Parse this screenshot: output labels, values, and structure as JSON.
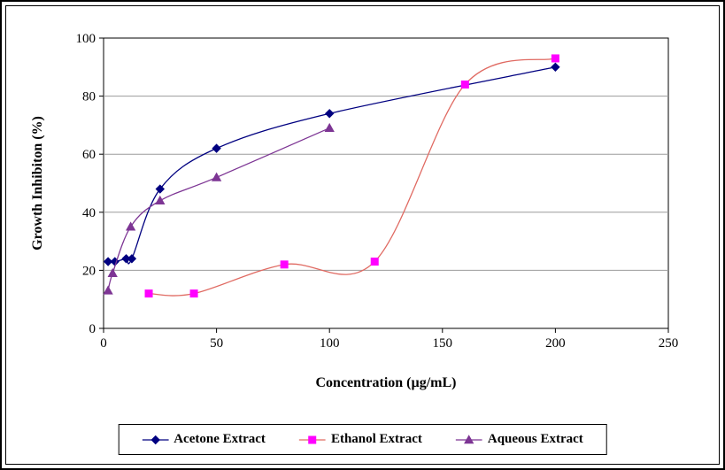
{
  "chart_data": {
    "type": "line",
    "title": "",
    "xlabel": "Concentration (µg/mL)",
    "ylabel": "Growth Inhibiton (%)",
    "xlim": [
      0,
      250
    ],
    "ylim": [
      0,
      100
    ],
    "xticks": [
      0,
      50,
      100,
      150,
      200,
      250
    ],
    "yticks": [
      0,
      20,
      40,
      60,
      80,
      100
    ],
    "grid": "horizontal",
    "legend_position": "bottom",
    "series": [
      {
        "name": "Acetone Extract",
        "color": "#000080",
        "marker": "diamond",
        "marker_color": "#000080",
        "points": [
          [
            2,
            23
          ],
          [
            5,
            23
          ],
          [
            10,
            24
          ],
          [
            12.5,
            24
          ],
          [
            25,
            48
          ],
          [
            50,
            62
          ],
          [
            100,
            74
          ],
          [
            200,
            90
          ]
        ]
      },
      {
        "name": "Ethanol Extract",
        "color": "#e06a62",
        "marker": "square",
        "marker_color": "#ff00ff",
        "points": [
          [
            20,
            12
          ],
          [
            40,
            12
          ],
          [
            80,
            22
          ],
          [
            120,
            23
          ],
          [
            160,
            84
          ],
          [
            200,
            93
          ]
        ]
      },
      {
        "name": "Aqueous Extract",
        "color": "#7d3594",
        "marker": "triangle",
        "marker_color": "#7d3594",
        "points": [
          [
            2,
            13
          ],
          [
            4,
            19
          ],
          [
            12,
            35
          ],
          [
            25,
            44
          ],
          [
            50,
            52
          ],
          [
            100,
            69
          ]
        ]
      }
    ]
  }
}
